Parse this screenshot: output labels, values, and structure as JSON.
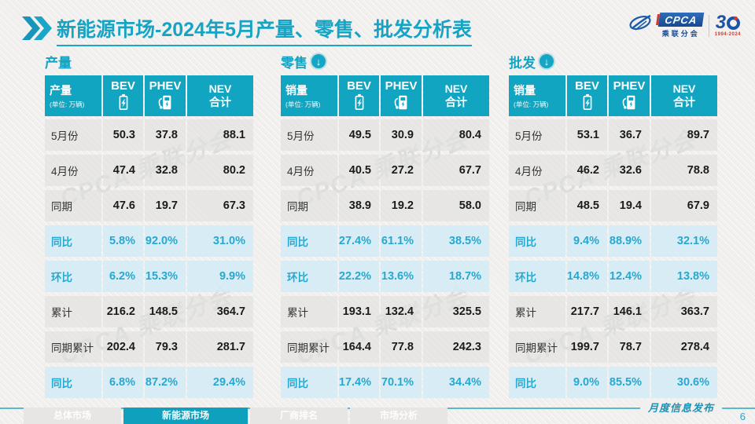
{
  "header": {
    "title_main": "新能源市场",
    "title_rest": "-2024年5月产量、零售、批发分析表",
    "logo": {
      "cpca": "CPCA",
      "sub": "乘联分会",
      "anniversary_3": "3",
      "years": "1994-2024"
    }
  },
  "watermark": {
    "text": "CPCA 乘联分会"
  },
  "tables": [
    {
      "section": "产量",
      "has_arrow": false,
      "corner_label": "产量",
      "unit": "(单位: 万辆)",
      "col_bev": "BEV",
      "col_phev": "PHEV",
      "col_nev_1": "NEV",
      "col_nev_2": "合计",
      "rows": [
        {
          "label": "5月份",
          "values": [
            "50.3",
            "37.8",
            "88.1"
          ],
          "highlight": false
        },
        {
          "label": "4月份",
          "values": [
            "47.4",
            "32.8",
            "80.2"
          ],
          "highlight": false
        },
        {
          "label": "同期",
          "values": [
            "47.6",
            "19.7",
            "67.3"
          ],
          "highlight": false
        },
        {
          "label": "同比",
          "values": [
            "5.8%",
            "92.0%",
            "31.0%"
          ],
          "highlight": true
        },
        {
          "label": "环比",
          "values": [
            "6.2%",
            "15.3%",
            "9.9%"
          ],
          "highlight": true
        },
        {
          "label": "累计",
          "values": [
            "216.2",
            "148.5",
            "364.7"
          ],
          "highlight": false
        },
        {
          "label": "同期累计",
          "values": [
            "202.4",
            "79.3",
            "281.7"
          ],
          "highlight": false
        },
        {
          "label": "同比",
          "values": [
            "6.8%",
            "87.2%",
            "29.4%"
          ],
          "highlight": true
        }
      ]
    },
    {
      "section": "零售",
      "has_arrow": true,
      "corner_label": "销量",
      "unit": "(单位: 万辆)",
      "col_bev": "BEV",
      "col_phev": "PHEV",
      "col_nev_1": "NEV",
      "col_nev_2": "合计",
      "rows": [
        {
          "label": "5月份",
          "values": [
            "49.5",
            "30.9",
            "80.4"
          ],
          "highlight": false
        },
        {
          "label": "4月份",
          "values": [
            "40.5",
            "27.2",
            "67.7"
          ],
          "highlight": false
        },
        {
          "label": "同期",
          "values": [
            "38.9",
            "19.2",
            "58.0"
          ],
          "highlight": false
        },
        {
          "label": "同比",
          "values": [
            "27.4%",
            "61.1%",
            "38.5%"
          ],
          "highlight": true
        },
        {
          "label": "环比",
          "values": [
            "22.2%",
            "13.6%",
            "18.7%"
          ],
          "highlight": true
        },
        {
          "label": "累计",
          "values": [
            "193.1",
            "132.4",
            "325.5"
          ],
          "highlight": false
        },
        {
          "label": "同期累计",
          "values": [
            "164.4",
            "77.8",
            "242.3"
          ],
          "highlight": false
        },
        {
          "label": "同比",
          "values": [
            "17.4%",
            "70.1%",
            "34.4%"
          ],
          "highlight": true
        }
      ]
    },
    {
      "section": "批发",
      "has_arrow": true,
      "corner_label": "销量",
      "unit": "(单位: 万辆)",
      "col_bev": "BEV",
      "col_phev": "PHEV",
      "col_nev_1": "NEV",
      "col_nev_2": "合计",
      "rows": [
        {
          "label": "5月份",
          "values": [
            "53.1",
            "36.7",
            "89.7"
          ],
          "highlight": false
        },
        {
          "label": "4月份",
          "values": [
            "46.2",
            "32.6",
            "78.8"
          ],
          "highlight": false
        },
        {
          "label": "同期",
          "values": [
            "48.5",
            "19.4",
            "67.9"
          ],
          "highlight": false
        },
        {
          "label": "同比",
          "values": [
            "9.4%",
            "88.9%",
            "32.1%"
          ],
          "highlight": true
        },
        {
          "label": "环比",
          "values": [
            "14.8%",
            "12.4%",
            "13.8%"
          ],
          "highlight": true
        },
        {
          "label": "累计",
          "values": [
            "217.7",
            "146.1",
            "363.7"
          ],
          "highlight": false
        },
        {
          "label": "同期累计",
          "values": [
            "199.7",
            "78.7",
            "278.4"
          ],
          "highlight": false
        },
        {
          "label": "同比",
          "values": [
            "9.0%",
            "85.5%",
            "30.6%"
          ],
          "highlight": true
        }
      ]
    }
  ],
  "footer": {
    "tabs": [
      {
        "label": "总体市场",
        "active": false
      },
      {
        "label": "新能源市场",
        "active": true
      },
      {
        "label": "厂商排名",
        "active": false
      },
      {
        "label": "市场分析",
        "active": false
      }
    ],
    "banner": "月度信息发布",
    "page": "6"
  },
  "icons": {
    "title_chevrons": "double-chevron-icon",
    "bev": "battery-icon",
    "phev": "charger-icon",
    "section_arrow": "circle-down-arrow-icon"
  },
  "colors": {
    "accent_teal": "#12a5c2",
    "highlight_text": "#27a8ce",
    "highlight_row_bg": "#d3ebf7",
    "logo_blue": "#1c54a4",
    "logo_red": "#d23a30"
  }
}
